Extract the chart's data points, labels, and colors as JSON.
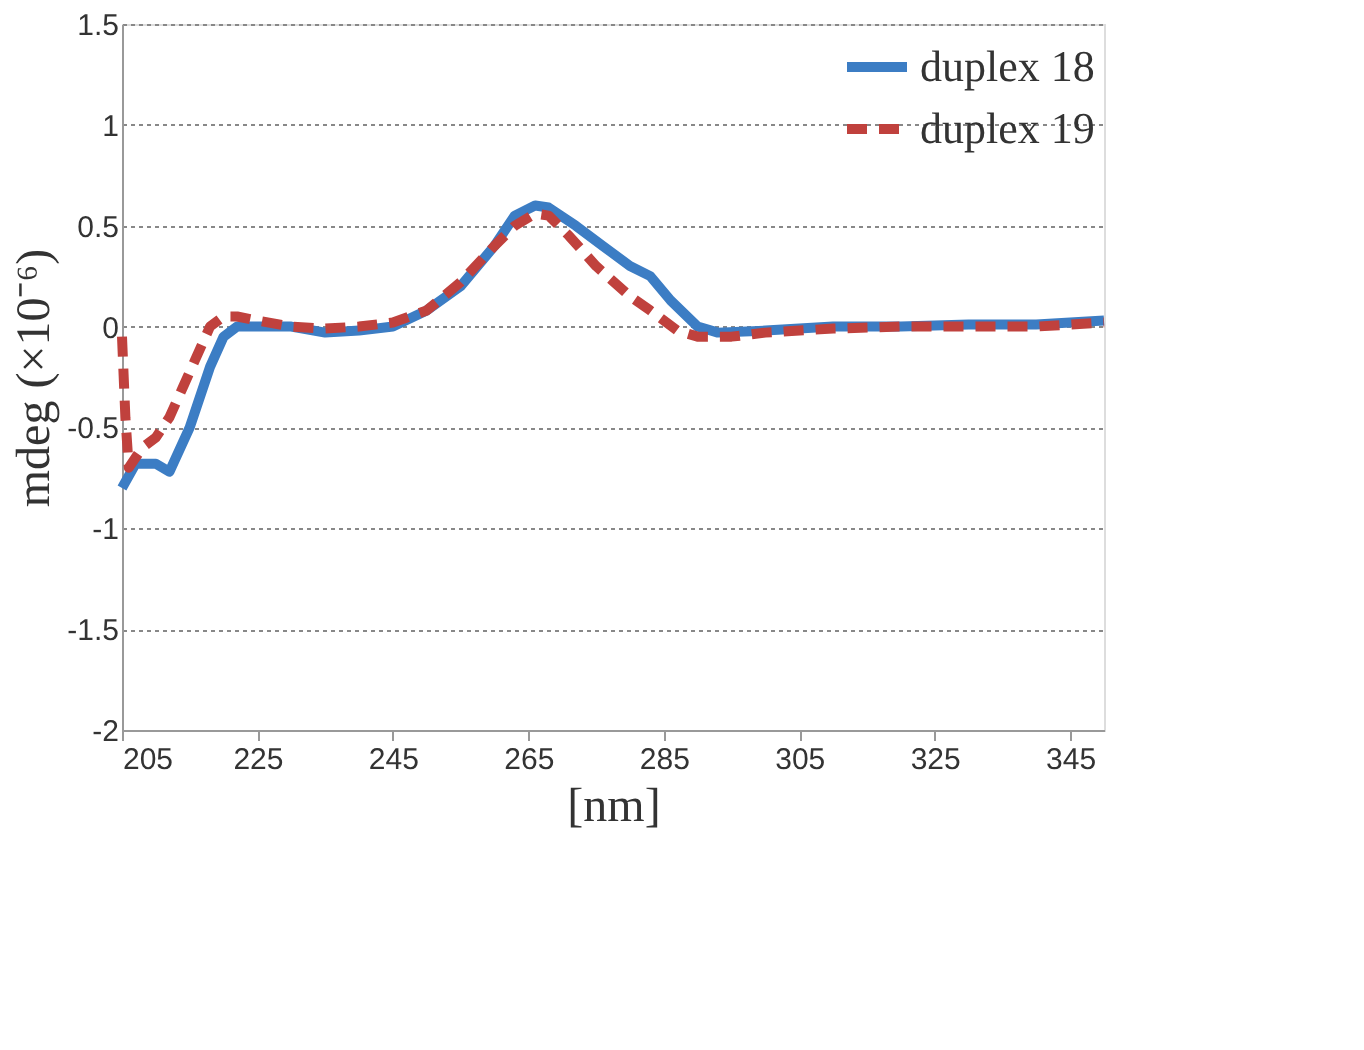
{
  "chart_data": {
    "type": "line",
    "xlabel": "[nm]",
    "ylabel": "mdeg (×10⁻⁶)",
    "xlim": [
      205,
      350
    ],
    "xticks": [
      205,
      225,
      245,
      265,
      285,
      305,
      325,
      345
    ],
    "ylim": [
      -2,
      1.5
    ],
    "yticks": [
      -2,
      -1.5,
      -1,
      -0.5,
      0,
      0.5,
      1,
      1.5
    ],
    "grid": "y",
    "legend": "top right",
    "series": [
      {
        "name": "duplex 18",
        "color": "#3c7dc4",
        "line_style": "solid",
        "x": [
          205,
          207,
          210,
          212,
          215,
          218,
          220,
          222,
          225,
          230,
          235,
          240,
          245,
          250,
          255,
          260,
          263,
          266,
          268,
          272,
          276,
          280,
          283,
          286,
          290,
          293,
          300,
          310,
          320,
          330,
          340,
          350
        ],
        "values": [
          -0.8,
          -0.68,
          -0.68,
          -0.72,
          -0.5,
          -0.2,
          -0.05,
          0.0,
          0.0,
          0.0,
          -0.03,
          -0.02,
          0.0,
          0.08,
          0.2,
          0.4,
          0.55,
          0.6,
          0.59,
          0.5,
          0.4,
          0.3,
          0.25,
          0.13,
          0.0,
          -0.03,
          -0.02,
          0.0,
          0.0,
          0.01,
          0.01,
          0.03
        ]
      },
      {
        "name": "duplex 19",
        "color": "#c0413d",
        "line_style": "dashed",
        "x": [
          205,
          205.5,
          206,
          208,
          210,
          212,
          214,
          216,
          218,
          220,
          222,
          225,
          230,
          235,
          240,
          245,
          250,
          255,
          260,
          263,
          266,
          268,
          271,
          275,
          280,
          283,
          287,
          290,
          295,
          300,
          310,
          320,
          330,
          340,
          350
        ],
        "values": [
          -0.05,
          -0.45,
          -0.7,
          -0.6,
          -0.55,
          -0.45,
          -0.3,
          -0.15,
          0.0,
          0.05,
          0.05,
          0.03,
          0.0,
          -0.01,
          0.0,
          0.02,
          0.08,
          0.22,
          0.4,
          0.5,
          0.56,
          0.55,
          0.45,
          0.3,
          0.15,
          0.08,
          -0.02,
          -0.05,
          -0.05,
          -0.03,
          -0.01,
          0.0,
          0.0,
          0.0,
          0.02
        ]
      }
    ]
  }
}
